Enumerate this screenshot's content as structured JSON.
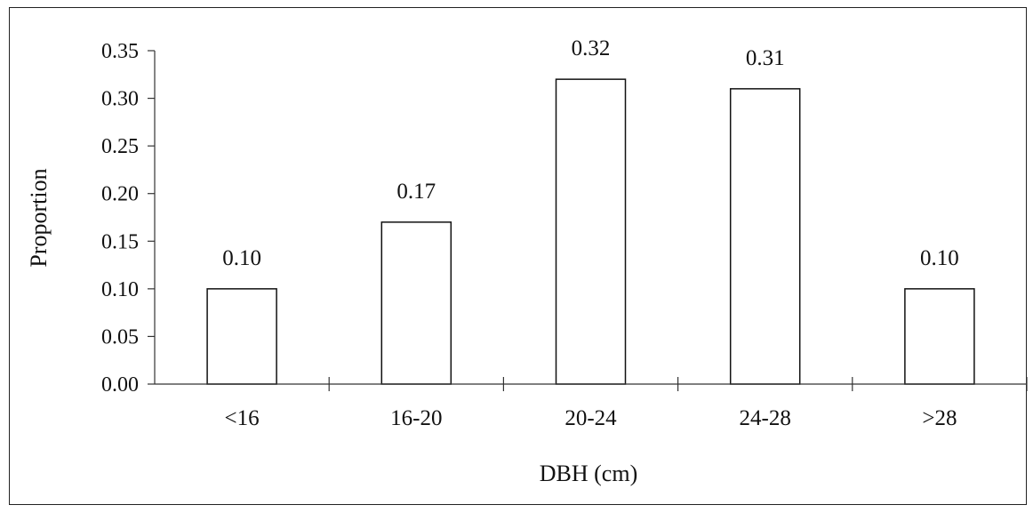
{
  "chart_data": {
    "type": "bar",
    "title": "",
    "xlabel": "DBH (cm)",
    "ylabel": "Proportion",
    "categories": [
      "<16",
      "16-20",
      "20-24",
      "24-28",
      ">28"
    ],
    "values": [
      0.1,
      0.17,
      0.32,
      0.31,
      0.1
    ],
    "data_labels": [
      "0.10",
      "0.17",
      "0.32",
      "0.31",
      "0.10"
    ],
    "ylim": [
      0,
      0.35
    ],
    "y_ticks": [
      "0.00",
      "0.05",
      "0.10",
      "0.15",
      "0.20",
      "0.25",
      "0.30",
      "0.35"
    ],
    "grid": false,
    "legend": "none",
    "colors": {
      "bar_fill": "#ffffff",
      "bar_stroke": "#111111",
      "axis": "#333333"
    }
  }
}
